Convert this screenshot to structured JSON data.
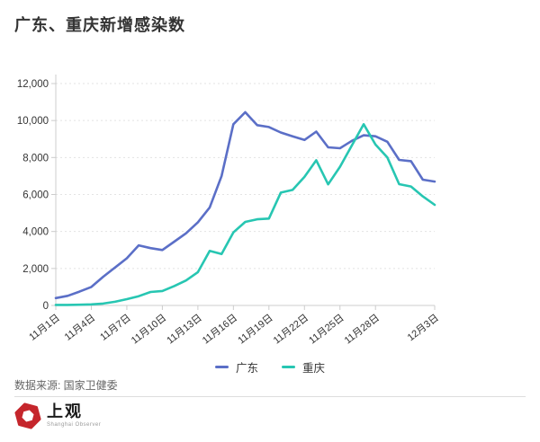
{
  "header": {
    "title": "广东、重庆新增感染数"
  },
  "chart_data": {
    "type": "line",
    "title": "广东、重庆新增感染数",
    "x": [
      "11月1日",
      "11月2日",
      "11月3日",
      "11月4日",
      "11月5日",
      "11月6日",
      "11月7日",
      "11月8日",
      "11月9日",
      "11月10日",
      "11月11日",
      "11月12日",
      "11月13日",
      "11月14日",
      "11月15日",
      "11月16日",
      "11月17日",
      "11月18日",
      "11月19日",
      "11月20日",
      "11月21日",
      "11月22日",
      "11月23日",
      "11月24日",
      "11月25日",
      "11月26日",
      "11月27日",
      "11月28日",
      "11月29日",
      "11月30日",
      "12月1日",
      "12月2日",
      "12月3日"
    ],
    "series": [
      {
        "name": "广东",
        "color": "#5b6fc7",
        "values": [
          400,
          520,
          750,
          1000,
          1550,
          2050,
          2550,
          3250,
          3100,
          3000,
          3450,
          3900,
          4500,
          5300,
          7000,
          9800,
          10450,
          9750,
          9650,
          9350,
          9150,
          8950,
          9400,
          8550,
          8500,
          8900,
          9200,
          9150,
          8850,
          7870,
          7800,
          6800,
          6700
        ]
      },
      {
        "name": "重庆",
        "color": "#27c6b2",
        "values": [
          30,
          30,
          40,
          60,
          100,
          200,
          340,
          500,
          730,
          780,
          1050,
          1350,
          1800,
          2950,
          2780,
          3950,
          4520,
          4660,
          4700,
          6100,
          6250,
          6950,
          7850,
          6550,
          7500,
          8650,
          9800,
          8700,
          8000,
          6560,
          6430,
          5900,
          5440
        ]
      }
    ],
    "xlabel": "",
    "ylabel": "",
    "ylim": [
      0,
      12000
    ],
    "ytick_interval": 2000,
    "ytick_labels": [
      "0",
      "2,000",
      "4,000",
      "6,000",
      "8,000",
      "10,000",
      "12,000"
    ],
    "xtick_indices": [
      0,
      3,
      6,
      9,
      12,
      15,
      18,
      21,
      24,
      27,
      32
    ],
    "xtick_rotation": -38,
    "grid": "horizontal-dotted",
    "legend_position": "bottom-center",
    "axis_color": "#cccccc",
    "grid_color": "#e3e3e3",
    "tick_label_color": "#333333"
  },
  "footer": {
    "source": "数据来源: 国家卫健委",
    "logo_title": "上观",
    "logo_subtitle": "Shanghai Observer",
    "logo_color": "#c5262c"
  }
}
